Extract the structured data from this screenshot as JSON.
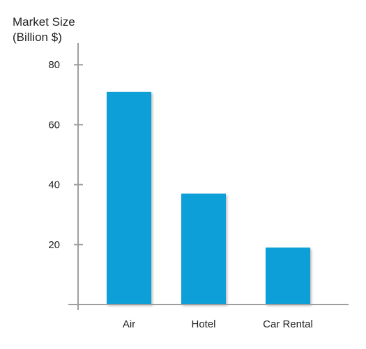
{
  "chart_data": {
    "type": "bar",
    "title": "",
    "xlabel": "",
    "ylabel_lines": [
      "Market Size",
      "(Billion $)"
    ],
    "categories": [
      "Air",
      "Hotel",
      "Car Rental"
    ],
    "values": [
      71,
      37,
      19
    ],
    "ylim": [
      0,
      90
    ],
    "y_ticks": [
      20,
      40,
      60,
      80
    ],
    "grid": false,
    "legend": "none",
    "bar_color": "#0a9fd8",
    "axis_color": "#9e9e9e"
  }
}
